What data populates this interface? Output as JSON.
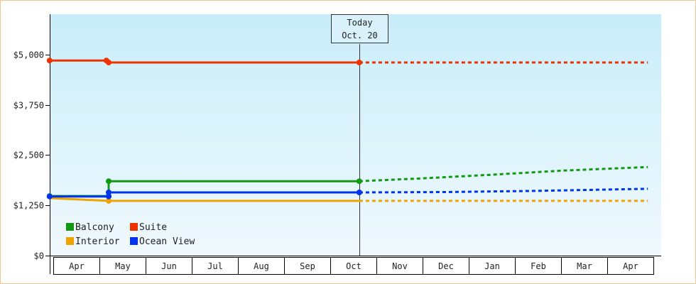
{
  "chart_data": {
    "type": "line",
    "title": "",
    "xlabel": "",
    "ylabel": "",
    "ylim": [
      0,
      6000
    ],
    "y_ticks": [
      {
        "value": 0,
        "label": "$0"
      },
      {
        "value": 1250,
        "label": "$1,250"
      },
      {
        "value": 2500,
        "label": "$2,500"
      },
      {
        "value": 3750,
        "label": "$3,750"
      },
      {
        "value": 5000,
        "label": "$5,000"
      }
    ],
    "months": [
      "Apr",
      "May",
      "Jun",
      "Jul",
      "Aug",
      "Sep",
      "Oct",
      "Nov",
      "Dec",
      "Jan",
      "Feb",
      "Mar",
      "Apr"
    ],
    "x_unit": "month index (0 = Apr start)",
    "xlim": [
      -0.08,
      12.88
    ],
    "today": {
      "label_line1": "Today",
      "label_line2": "Oct. 20",
      "x": 6.63
    },
    "grid": false,
    "legend_position": "bottom-left",
    "series": [
      {
        "name": "Balcony",
        "color": "#119911",
        "history": [
          [
            -0.08,
            1480
          ],
          [
            1.2,
            1480
          ],
          [
            1.2,
            1850
          ],
          [
            6.63,
            1850
          ]
        ],
        "markers": [
          [
            -0.08,
            1480
          ],
          [
            1.2,
            1480
          ],
          [
            1.2,
            1850
          ],
          [
            6.63,
            1850
          ]
        ],
        "forecast": [
          [
            6.63,
            1850
          ],
          [
            8,
            1920
          ],
          [
            9.5,
            2010
          ],
          [
            11,
            2110
          ],
          [
            12.88,
            2200
          ]
        ]
      },
      {
        "name": "Suite",
        "color": "#ee3300",
        "history": [
          [
            -0.08,
            4850
          ],
          [
            1.15,
            4850
          ],
          [
            1.2,
            4800
          ],
          [
            6.63,
            4800
          ]
        ],
        "markers": [
          [
            -0.08,
            4850
          ],
          [
            1.15,
            4850
          ],
          [
            1.2,
            4800
          ],
          [
            6.63,
            4800
          ]
        ],
        "forecast": [
          [
            6.63,
            4800
          ],
          [
            12.88,
            4800
          ]
        ]
      },
      {
        "name": "Interior",
        "color": "#f0a400",
        "history": [
          [
            -0.08,
            1430
          ],
          [
            1.2,
            1360
          ],
          [
            6.63,
            1360
          ]
        ],
        "markers": [
          [
            1.2,
            1360
          ]
        ],
        "forecast": [
          [
            6.63,
            1360
          ],
          [
            12.88,
            1360
          ]
        ]
      },
      {
        "name": "Ocean View",
        "color": "#0033ee",
        "history": [
          [
            -0.08,
            1470
          ],
          [
            1.2,
            1470
          ],
          [
            1.2,
            1570
          ],
          [
            6.63,
            1570
          ]
        ],
        "markers": [
          [
            -0.08,
            1470
          ],
          [
            1.2,
            1470
          ],
          [
            1.2,
            1570
          ],
          [
            6.63,
            1570
          ]
        ],
        "forecast": [
          [
            6.63,
            1570
          ],
          [
            8.5,
            1580
          ],
          [
            10.5,
            1610
          ],
          [
            12.88,
            1660
          ]
        ]
      }
    ],
    "colors": {
      "plot_top": "#c8edf9",
      "plot_bottom": "#f0f9fd",
      "frame": "#f0c890",
      "axis": "#000000"
    }
  }
}
